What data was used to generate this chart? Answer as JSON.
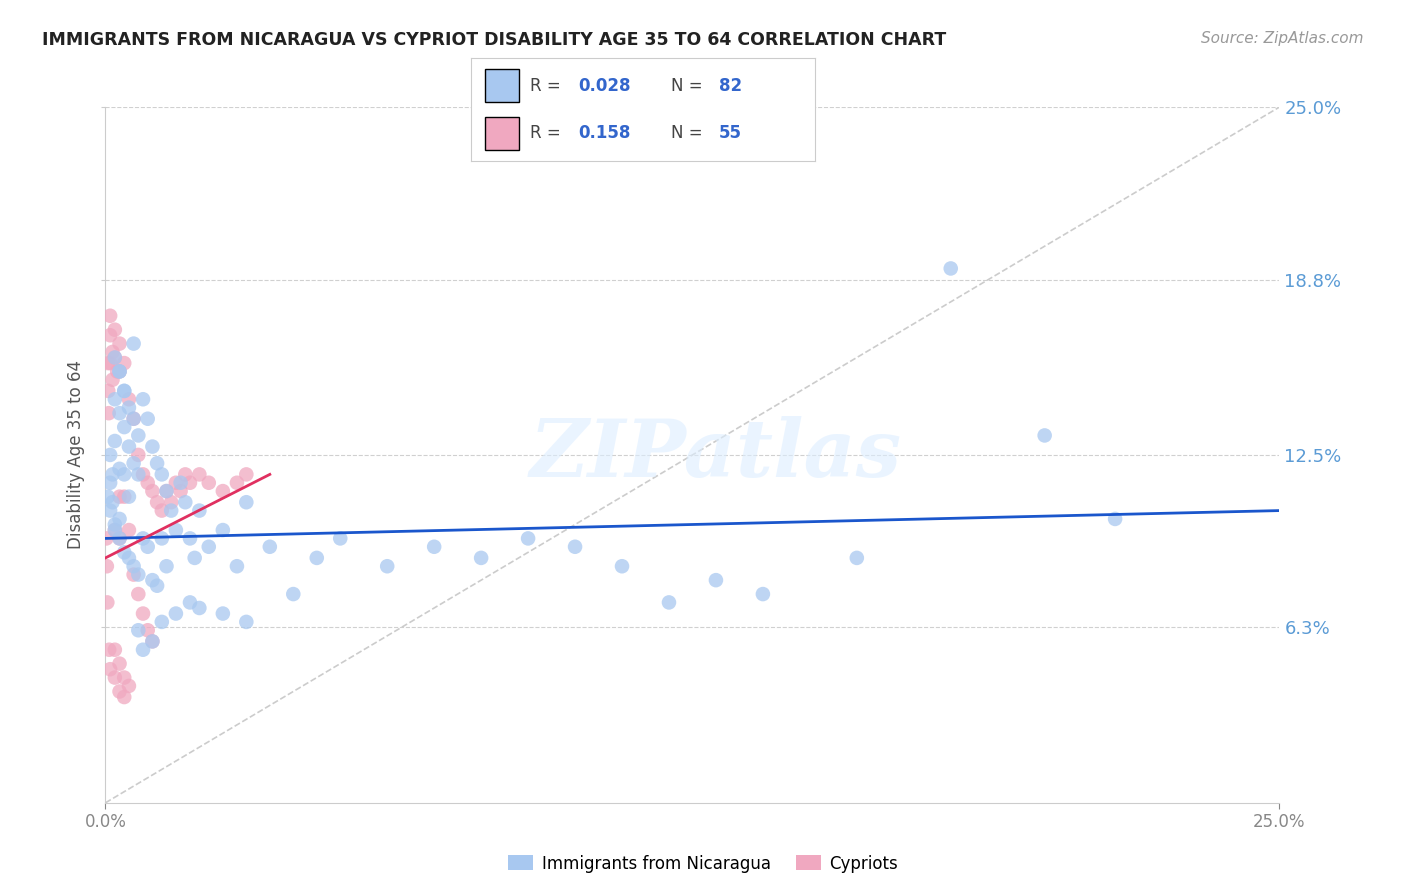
{
  "title": "IMMIGRANTS FROM NICARAGUA VS CYPRIOT DISABILITY AGE 35 TO 64 CORRELATION CHART",
  "source": "Source: ZipAtlas.com",
  "ylabel": "Disability Age 35 to 64",
  "xlim": [
    0.0,
    0.25
  ],
  "ylim": [
    0.0,
    0.25
  ],
  "ytick_positions_right": [
    0.25,
    0.188,
    0.125,
    0.063
  ],
  "ytick_labels_right": [
    "25.0%",
    "18.8%",
    "12.5%",
    "6.3%"
  ],
  "grid_color": "#d0d0d0",
  "background_color": "#ffffff",
  "watermark": "ZIPatlas",
  "series1_color": "#a8c8f0",
  "series2_color": "#f0a8c0",
  "trendline1_color": "#1a56cc",
  "trendline2_color": "#e03060",
  "diagonal_color": "#cccccc",
  "blue_scatter_x": [
    0.0005,
    0.001,
    0.001,
    0.001,
    0.0015,
    0.0015,
    0.002,
    0.002,
    0.002,
    0.002,
    0.003,
    0.003,
    0.003,
    0.003,
    0.004,
    0.004,
    0.004,
    0.004,
    0.005,
    0.005,
    0.005,
    0.006,
    0.006,
    0.006,
    0.007,
    0.007,
    0.007,
    0.008,
    0.008,
    0.009,
    0.009,
    0.01,
    0.01,
    0.011,
    0.011,
    0.012,
    0.012,
    0.013,
    0.013,
    0.014,
    0.015,
    0.016,
    0.017,
    0.018,
    0.019,
    0.02,
    0.022,
    0.025,
    0.028,
    0.03,
    0.035,
    0.04,
    0.045,
    0.05,
    0.06,
    0.07,
    0.08,
    0.09,
    0.1,
    0.11,
    0.12,
    0.13,
    0.14,
    0.16,
    0.18,
    0.2,
    0.215,
    0.007,
    0.008,
    0.01,
    0.012,
    0.015,
    0.018,
    0.02,
    0.025,
    0.03,
    0.003,
    0.004,
    0.005,
    0.006,
    0.002,
    0.003
  ],
  "blue_scatter_y": [
    0.11,
    0.125,
    0.115,
    0.105,
    0.118,
    0.108,
    0.16,
    0.145,
    0.13,
    0.1,
    0.155,
    0.14,
    0.12,
    0.095,
    0.148,
    0.135,
    0.118,
    0.09,
    0.142,
    0.128,
    0.088,
    0.138,
    0.122,
    0.085,
    0.132,
    0.118,
    0.082,
    0.145,
    0.095,
    0.138,
    0.092,
    0.128,
    0.08,
    0.122,
    0.078,
    0.118,
    0.095,
    0.112,
    0.085,
    0.105,
    0.098,
    0.115,
    0.108,
    0.095,
    0.088,
    0.105,
    0.092,
    0.098,
    0.085,
    0.108,
    0.092,
    0.075,
    0.088,
    0.095,
    0.085,
    0.092,
    0.088,
    0.095,
    0.092,
    0.085,
    0.072,
    0.08,
    0.075,
    0.088,
    0.192,
    0.132,
    0.102,
    0.062,
    0.055,
    0.058,
    0.065,
    0.068,
    0.072,
    0.07,
    0.068,
    0.065,
    0.155,
    0.148,
    0.11,
    0.165,
    0.098,
    0.102
  ],
  "pink_scatter_x": [
    0.0002,
    0.0003,
    0.0004,
    0.0005,
    0.0006,
    0.0007,
    0.0008,
    0.001,
    0.001,
    0.001,
    0.001,
    0.0015,
    0.0015,
    0.002,
    0.002,
    0.002,
    0.002,
    0.0025,
    0.003,
    0.003,
    0.003,
    0.003,
    0.003,
    0.004,
    0.004,
    0.004,
    0.005,
    0.005,
    0.005,
    0.006,
    0.006,
    0.007,
    0.007,
    0.008,
    0.008,
    0.009,
    0.009,
    0.01,
    0.01,
    0.011,
    0.012,
    0.013,
    0.014,
    0.015,
    0.016,
    0.017,
    0.018,
    0.02,
    0.022,
    0.025,
    0.028,
    0.03,
    0.002,
    0.003,
    0.004
  ],
  "pink_scatter_y": [
    0.095,
    0.085,
    0.072,
    0.158,
    0.148,
    0.14,
    0.055,
    0.175,
    0.168,
    0.158,
    0.048,
    0.162,
    0.152,
    0.17,
    0.16,
    0.098,
    0.045,
    0.155,
    0.165,
    0.155,
    0.11,
    0.095,
    0.04,
    0.158,
    0.11,
    0.038,
    0.145,
    0.098,
    0.042,
    0.138,
    0.082,
    0.125,
    0.075,
    0.118,
    0.068,
    0.115,
    0.062,
    0.112,
    0.058,
    0.108,
    0.105,
    0.112,
    0.108,
    0.115,
    0.112,
    0.118,
    0.115,
    0.118,
    0.115,
    0.112,
    0.115,
    0.118,
    0.055,
    0.05,
    0.045
  ],
  "trendline1_x": [
    0.0,
    0.25
  ],
  "trendline1_y": [
    0.095,
    0.105
  ],
  "trendline2_x": [
    0.0,
    0.035
  ],
  "trendline2_y": [
    0.088,
    0.118
  ]
}
